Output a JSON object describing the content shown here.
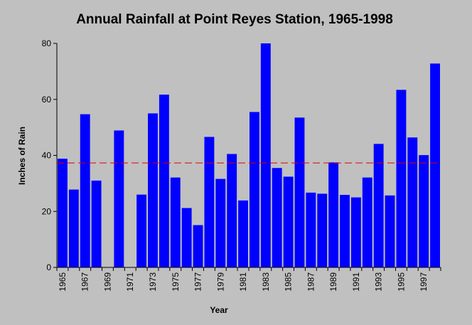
{
  "chart_data": {
    "type": "bar",
    "title": "Annual Rainfall at Point Reyes Station, 1965-1998",
    "xlabel": "Year",
    "ylabel": "Inches of Rain",
    "ylim": [
      0,
      80
    ],
    "yticks": [
      0,
      20,
      40,
      60,
      80
    ],
    "x_tick_labels": [
      "1965",
      "1967",
      "1969",
      "1971",
      "1973",
      "1975",
      "1977",
      "1979",
      "1981",
      "1983",
      "1985",
      "1987",
      "1989",
      "1991",
      "1993",
      "1995",
      "1997"
    ],
    "categories": [
      1965,
      1966,
      1967,
      1968,
      1969,
      1970,
      1971,
      1972,
      1973,
      1974,
      1975,
      1976,
      1977,
      1978,
      1979,
      1980,
      1981,
      1982,
      1983,
      1984,
      1985,
      1986,
      1987,
      1988,
      1989,
      1990,
      1991,
      1992,
      1993,
      1994,
      1995,
      1996,
      1997,
      1998
    ],
    "values": [
      38.8,
      27.8,
      54.7,
      31.0,
      null,
      48.9,
      null,
      26.0,
      55.0,
      61.7,
      32.1,
      21.2,
      15.1,
      46.6,
      31.6,
      40.5,
      23.9,
      55.5,
      80.0,
      35.5,
      32.4,
      53.5,
      26.7,
      26.3,
      37.5,
      25.9,
      25.0,
      32.1,
      44.1,
      25.7,
      63.4,
      46.4,
      40.1,
      72.8
    ],
    "reference_line": {
      "value": 37.3,
      "style": "dashed",
      "color": "#e00000"
    },
    "bar_color": "#0000ff",
    "grid": false,
    "legend": "none"
  }
}
